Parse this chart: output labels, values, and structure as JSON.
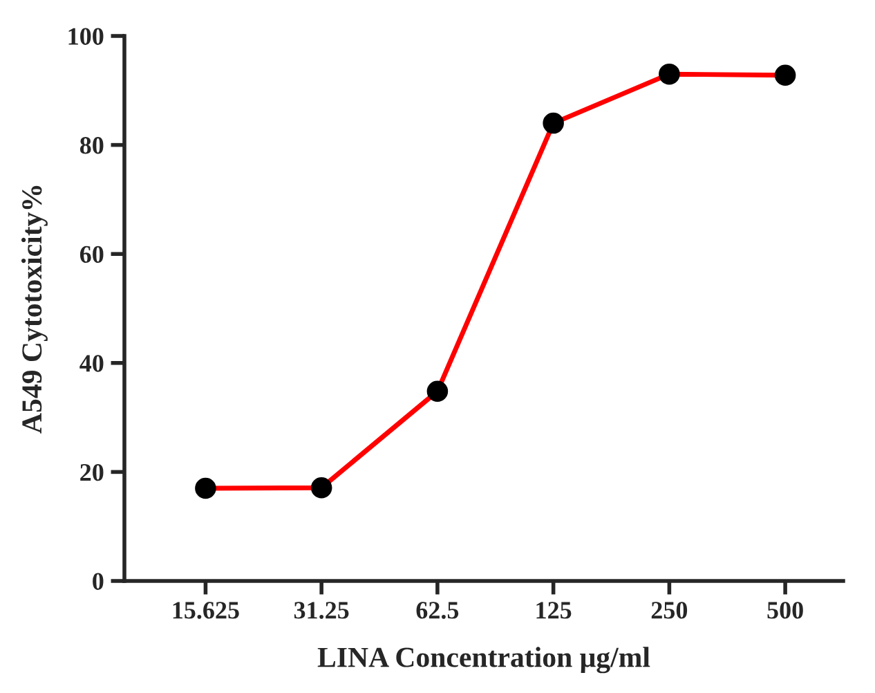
{
  "chart_data": {
    "type": "line",
    "xlabel": "LINA Concentration μg/ml",
    "ylabel": "A549 Cytotoxicity%",
    "categories": [
      "15.625",
      "31.25",
      "62.5",
      "125",
      "250",
      "500"
    ],
    "series": [
      {
        "color": "#ff0000",
        "values": [
          17.0,
          17.1,
          34.8,
          84.0,
          93.0,
          92.8
        ]
      }
    ],
    "ylim": [
      0,
      100
    ],
    "yticks": [
      0,
      20,
      40,
      60,
      80,
      100
    ],
    "grid": false,
    "legend": false,
    "marker": "circle",
    "line_style": "solid"
  }
}
